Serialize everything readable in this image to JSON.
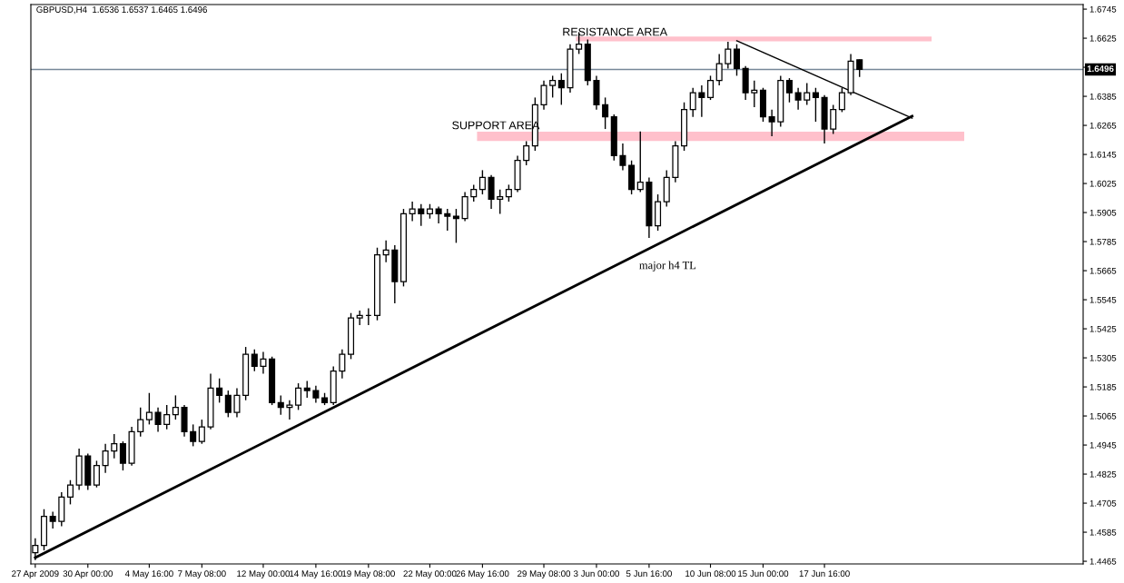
{
  "chart_data": {
    "type": "candlestick",
    "title": "GBPUSD,H4  1.6536 1.6537 1.6465 1.6496",
    "color": "#000000",
    "grid": false,
    "categories": [
      "27 Apr 2009",
      null,
      null,
      null,
      null,
      null,
      "30 Apr 00:00",
      null,
      null,
      null,
      null,
      null,
      null,
      "4 May 16:00",
      null,
      null,
      null,
      null,
      null,
      "7 May 08:00",
      null,
      null,
      null,
      null,
      null,
      null,
      "12 May 00:00",
      null,
      null,
      null,
      null,
      null,
      "14 May 16:00",
      null,
      null,
      null,
      null,
      null,
      "19 May 08:00",
      null,
      null,
      null,
      null,
      null,
      null,
      "22 May 00:00",
      null,
      null,
      null,
      null,
      null,
      "26 May 16:00",
      null,
      null,
      null,
      null,
      null,
      null,
      "29 May 08:00",
      null,
      null,
      null,
      null,
      null,
      "3 Jun 00:00",
      null,
      null,
      null,
      null,
      null,
      "5 Jun 16:00",
      null,
      null,
      null,
      null,
      null,
      null,
      "10 Jun 08:00",
      null,
      null,
      null,
      null,
      null,
      "15 Jun 00:00",
      null,
      null,
      null,
      null,
      null,
      null,
      "17 Jun 16:00",
      null,
      null,
      null,
      null,
      null,
      null,
      null,
      null,
      null,
      null,
      null,
      null,
      null,
      null,
      null,
      null,
      null,
      null,
      null,
      null,
      null,
      null,
      null,
      null,
      null,
      null,
      null,
      null,
      null
    ],
    "ohlc": [
      [
        1.45,
        1.456,
        1.447,
        1.453
      ],
      [
        1.453,
        1.468,
        1.451,
        1.465
      ],
      [
        1.465,
        1.467,
        1.46,
        1.463
      ],
      [
        1.463,
        1.475,
        1.461,
        1.473
      ],
      [
        1.473,
        1.48,
        1.47,
        1.478
      ],
      [
        1.478,
        1.493,
        1.476,
        1.49
      ],
      [
        1.49,
        1.491,
        1.476,
        1.478
      ],
      [
        1.478,
        1.488,
        1.477,
        1.486
      ],
      [
        1.486,
        1.495,
        1.483,
        1.492
      ],
      [
        1.492,
        1.499,
        1.489,
        1.495
      ],
      [
        1.495,
        1.496,
        1.484,
        1.487
      ],
      [
        1.487,
        1.502,
        1.486,
        1.5
      ],
      [
        1.5,
        1.51,
        1.498,
        1.505
      ],
      [
        1.505,
        1.516,
        1.503,
        1.508
      ],
      [
        1.508,
        1.51,
        1.5,
        1.503
      ],
      [
        1.503,
        1.511,
        1.501,
        1.507
      ],
      [
        1.507,
        1.515,
        1.505,
        1.51
      ],
      [
        1.51,
        1.511,
        1.498,
        1.5
      ],
      [
        1.5,
        1.503,
        1.494,
        1.496
      ],
      [
        1.496,
        1.505,
        1.495,
        1.502
      ],
      [
        1.502,
        1.524,
        1.501,
        1.518
      ],
      [
        1.518,
        1.522,
        1.512,
        1.515
      ],
      [
        1.515,
        1.517,
        1.506,
        1.508
      ],
      [
        1.508,
        1.518,
        1.506,
        1.515
      ],
      [
        1.515,
        1.535,
        1.513,
        1.532
      ],
      [
        1.532,
        1.534,
        1.525,
        1.527
      ],
      [
        1.527,
        1.533,
        1.524,
        1.53
      ],
      [
        1.53,
        1.531,
        1.511,
        1.512
      ],
      [
        1.512,
        1.515,
        1.507,
        1.51
      ],
      [
        1.51,
        1.513,
        1.505,
        1.511
      ],
      [
        1.511,
        1.52,
        1.509,
        1.518
      ],
      [
        1.518,
        1.521,
        1.514,
        1.517
      ],
      [
        1.517,
        1.519,
        1.512,
        1.514
      ],
      [
        1.514,
        1.516,
        1.511,
        1.512
      ],
      [
        1.512,
        1.527,
        1.511,
        1.525
      ],
      [
        1.525,
        1.534,
        1.522,
        1.532
      ],
      [
        1.532,
        1.549,
        1.53,
        1.547
      ],
      [
        1.547,
        1.55,
        1.544,
        1.548
      ],
      [
        1.548,
        1.551,
        1.544,
        1.548
      ],
      [
        1.548,
        1.576,
        1.546,
        1.573
      ],
      [
        1.573,
        1.579,
        1.57,
        1.575
      ],
      [
        1.575,
        1.577,
        1.553,
        1.562
      ],
      [
        1.562,
        1.592,
        1.56,
        1.59
      ],
      [
        1.59,
        1.595,
        1.587,
        1.592
      ],
      [
        1.592,
        1.594,
        1.585,
        1.59
      ],
      [
        1.59,
        1.594,
        1.588,
        1.592
      ],
      [
        1.592,
        1.593,
        1.586,
        1.59
      ],
      [
        1.59,
        1.592,
        1.583,
        1.589
      ],
      [
        1.589,
        1.592,
        1.578,
        1.588
      ],
      [
        1.588,
        1.599,
        1.587,
        1.597
      ],
      [
        1.597,
        1.602,
        1.595,
        1.6
      ],
      [
        1.6,
        1.608,
        1.598,
        1.605
      ],
      [
        1.605,
        1.606,
        1.592,
        1.596
      ],
      [
        1.596,
        1.6,
        1.59,
        1.597
      ],
      [
        1.597,
        1.602,
        1.595,
        1.6
      ],
      [
        1.6,
        1.614,
        1.599,
        1.612
      ],
      [
        1.612,
        1.62,
        1.61,
        1.618
      ],
      [
        1.618,
        1.638,
        1.616,
        1.635
      ],
      [
        1.635,
        1.645,
        1.633,
        1.643
      ],
      [
        1.643,
        1.647,
        1.638,
        1.645
      ],
      [
        1.645,
        1.648,
        1.635,
        1.642
      ],
      [
        1.642,
        1.66,
        1.64,
        1.658
      ],
      [
        1.658,
        1.665,
        1.656,
        1.66
      ],
      [
        1.66,
        1.662,
        1.643,
        1.645
      ],
      [
        1.645,
        1.647,
        1.633,
        1.635
      ],
      [
        1.635,
        1.638,
        1.625,
        1.63
      ],
      [
        1.63,
        1.631,
        1.612,
        1.614
      ],
      [
        1.614,
        1.619,
        1.608,
        1.61
      ],
      [
        1.61,
        1.612,
        1.598,
        1.6
      ],
      [
        1.6,
        1.624,
        1.599,
        1.603
      ],
      [
        1.603,
        1.605,
        1.58,
        1.585
      ],
      [
        1.585,
        1.598,
        1.583,
        1.595
      ],
      [
        1.595,
        1.608,
        1.593,
        1.605
      ],
      [
        1.605,
        1.62,
        1.603,
        1.618
      ],
      [
        1.618,
        1.636,
        1.616,
        1.633
      ],
      [
        1.633,
        1.642,
        1.63,
        1.64
      ],
      [
        1.64,
        1.643,
        1.63,
        1.638
      ],
      [
        1.638,
        1.647,
        1.637,
        1.645
      ],
      [
        1.645,
        1.656,
        1.643,
        1.652
      ],
      [
        1.652,
        1.661,
        1.65,
        1.658
      ],
      [
        1.658,
        1.66,
        1.647,
        1.65
      ],
      [
        1.65,
        1.651,
        1.637,
        1.64
      ],
      [
        1.64,
        1.645,
        1.634,
        1.641
      ],
      [
        1.641,
        1.642,
        1.628,
        1.63
      ],
      [
        1.63,
        1.633,
        1.622,
        1.628
      ],
      [
        1.628,
        1.647,
        1.626,
        1.645
      ],
      [
        1.645,
        1.646,
        1.636,
        1.64
      ],
      [
        1.64,
        1.642,
        1.633,
        1.637
      ],
      [
        1.637,
        1.644,
        1.635,
        1.64
      ],
      [
        1.64,
        1.642,
        1.628,
        1.638
      ],
      [
        1.638,
        1.639,
        1.619,
        1.625
      ],
      [
        1.625,
        1.635,
        1.623,
        1.633
      ],
      [
        1.633,
        1.642,
        1.632,
        1.64
      ],
      [
        1.64,
        1.656,
        1.639,
        1.653
      ],
      [
        1.6536,
        1.6537,
        1.6465,
        1.6496
      ],
      null,
      null,
      null,
      null,
      null,
      null,
      null,
      null,
      null,
      null,
      null,
      null,
      null,
      null,
      null,
      null,
      null,
      null,
      null,
      null,
      null,
      null,
      null,
      null,
      null
    ],
    "series": [
      {
        "type": "line",
        "color": "#000000",
        "values": [
          1.448,
          null,
          null,
          null,
          null,
          null,
          null,
          null,
          null,
          null,
          null,
          null,
          null,
          null,
          null,
          null,
          null,
          null,
          null,
          null,
          null,
          null,
          null,
          null,
          null,
          null,
          null,
          null,
          null,
          null,
          null,
          null,
          null,
          null,
          null,
          null,
          null,
          null,
          null,
          null,
          null,
          null,
          null,
          null,
          null,
          null,
          null,
          null,
          null,
          null,
          null,
          null,
          null,
          null,
          null,
          null,
          null,
          null,
          null,
          null,
          null,
          null,
          null,
          null,
          null,
          null,
          null,
          null,
          null,
          null,
          null,
          null,
          null,
          null,
          null,
          null,
          null,
          null,
          null,
          null,
          null,
          null,
          null,
          null,
          null,
          null,
          null,
          null,
          null,
          null,
          null,
          null,
          null,
          null,
          null,
          null,
          null,
          null,
          null,
          null,
          1.6303,
          null,
          null,
          null,
          null,
          null,
          null,
          null,
          null,
          null,
          null,
          null,
          null,
          null,
          null,
          null,
          null,
          null,
          null,
          null
        ]
      },
      {
        "type": "line",
        "color": "#000000",
        "values": [
          null,
          null,
          null,
          null,
          null,
          null,
          null,
          null,
          null,
          null,
          null,
          null,
          null,
          null,
          null,
          null,
          null,
          null,
          null,
          null,
          null,
          null,
          null,
          null,
          null,
          null,
          null,
          null,
          null,
          null,
          null,
          null,
          null,
          null,
          null,
          null,
          null,
          null,
          null,
          null,
          null,
          null,
          null,
          null,
          null,
          null,
          null,
          null,
          null,
          null,
          null,
          null,
          null,
          null,
          null,
          null,
          null,
          null,
          null,
          null,
          null,
          null,
          null,
          null,
          null,
          null,
          null,
          null,
          null,
          null,
          null,
          null,
          null,
          null,
          null,
          null,
          null,
          null,
          null,
          null,
          1.6614,
          null,
          null,
          null,
          null,
          null,
          null,
          null,
          null,
          null,
          null,
          null,
          null,
          null,
          null,
          null,
          null,
          null,
          null,
          null,
          1.6295,
          null,
          null,
          null,
          null,
          null,
          null,
          null,
          null,
          null,
          null,
          null,
          null,
          null,
          null,
          null,
          null,
          null,
          null,
          null
        ]
      }
    ],
    "bands": [
      {
        "axis": "y",
        "from": 1.6201,
        "to": 1.6239,
        "color": "#ffc0cb"
      },
      {
        "axis": "y",
        "from": 1.6612,
        "to": 1.6632,
        "color": "#ffc0cb"
      }
    ],
    "ref_lines": [
      {
        "axis": "y",
        "value": 1.6496,
        "label": "1.6496",
        "color": "#778899"
      }
    ],
    "annotations": [
      "RESISTANCE AREA",
      "SUPPORT AREA",
      "major h4 TL"
    ],
    "ylim": [
      1.4454,
      1.6764
    ],
    "yticks": [
      1.4465,
      1.4585,
      1.4705,
      1.4825,
      1.4945,
      1.5065,
      1.5185,
      1.5305,
      1.5425,
      1.5545,
      1.5665,
      1.5785,
      1.5905,
      1.6025,
      1.6145,
      1.6265,
      1.6385,
      {
        "value": 1.6505,
        "label": null
      },
      1.6625,
      1.6745
    ]
  }
}
